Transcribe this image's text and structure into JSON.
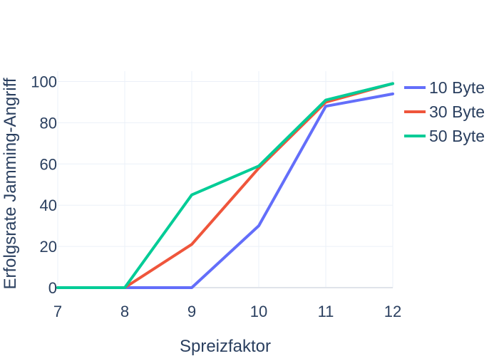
{
  "chart_data": {
    "type": "line",
    "title": "",
    "xlabel": "Spreizfaktor",
    "ylabel": "Erfolgsrate Jamming-Angriff",
    "x": [
      7,
      8,
      9,
      10,
      11,
      12
    ],
    "xlim": [
      7,
      12
    ],
    "ylim": [
      0,
      105
    ],
    "xticks": [
      7,
      8,
      9,
      10,
      11,
      12
    ],
    "yticks": [
      0,
      20,
      40,
      60,
      80,
      100
    ],
    "grid": true,
    "legend_position": "top-right",
    "series": [
      {
        "name": "10 Byte",
        "color": "#636efa",
        "values": [
          0,
          0,
          0,
          30,
          88,
          94
        ]
      },
      {
        "name": "30 Byte",
        "color": "#ef553b",
        "values": [
          0,
          0,
          21,
          58,
          90,
          99
        ]
      },
      {
        "name": "50 Byte",
        "color": "#00cc96",
        "values": [
          0,
          0,
          45,
          59,
          91,
          99
        ]
      }
    ]
  }
}
